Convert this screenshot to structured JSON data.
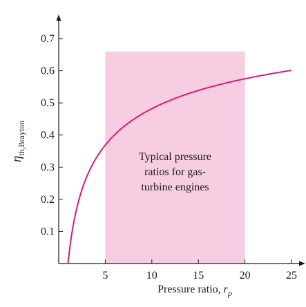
{
  "chart_data": {
    "type": "line",
    "title": "",
    "xlabel": "Pressure ratio, ",
    "xlabel_var": "r",
    "xlabel_sub": "p",
    "ylabel_var": "η",
    "ylabel_sub": "th,Brayton",
    "xlim": [
      0,
      26
    ],
    "ylim": [
      0,
      0.77
    ],
    "xticks": [
      5,
      10,
      15,
      20,
      25
    ],
    "yticks": [
      0.1,
      0.2,
      0.3,
      0.4,
      0.5,
      0.6,
      0.7
    ],
    "grid": false,
    "series": [
      {
        "color": "#e0167a",
        "function": "1 - rp^(-0.2857)",
        "x": [
          1.0,
          1.5,
          2,
          3,
          4,
          5,
          6,
          8,
          10,
          12,
          14,
          16,
          18,
          20,
          22,
          24,
          25
        ],
        "y": [
          0.0,
          0.109,
          0.18,
          0.269,
          0.327,
          0.369,
          0.401,
          0.448,
          0.482,
          0.508,
          0.53,
          0.547,
          0.563,
          0.575,
          0.587,
          0.597,
          0.601
        ]
      }
    ],
    "shaded_region": {
      "x_range": [
        5,
        20
      ],
      "y_top": 0.66,
      "color": "#f7cde1",
      "annotation": [
        "Typical pressure",
        "ratios for gas-",
        "turbine engines"
      ]
    }
  }
}
